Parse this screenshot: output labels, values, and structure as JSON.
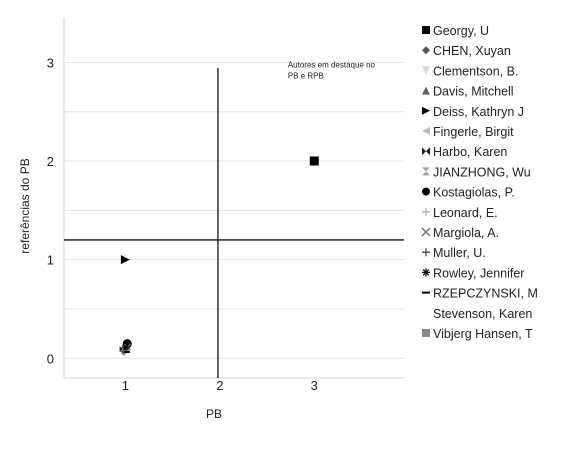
{
  "chart_data": {
    "type": "scatter",
    "title": "",
    "xlabel": "PB",
    "ylabel": "referências do PB",
    "xlim": [
      0.35,
      3.95
    ],
    "ylim": [
      -0.2,
      3.45
    ],
    "x_ticks": [
      "1",
      "2",
      "3"
    ],
    "y_ticks": [
      "0",
      "1",
      "2",
      "3"
    ],
    "x_tick_values": [
      1,
      2,
      3
    ],
    "y_tick_values": [
      0,
      1,
      2,
      3
    ],
    "grid": "horizontal",
    "reference_lines": {
      "x": 1.98,
      "y": 1.2
    },
    "annotation": {
      "line1": "Autores em destaque no",
      "line2": "PB e RPB",
      "x": 2.72,
      "y_top": 2.95
    },
    "legend_placement": "right",
    "series": [
      {
        "name": "Georgy, U",
        "marker": "square",
        "color": "#000000",
        "points": [
          [
            3.0,
            2.0
          ]
        ]
      },
      {
        "name": "CHEN, Xuyan",
        "marker": "diamond",
        "color": "#555555",
        "points": [
          [
            1.0,
            0.1
          ]
        ]
      },
      {
        "name": "Clementson, B.",
        "marker": "triangle-down",
        "color": "#d8d8d8",
        "points": [
          [
            1.0,
            0.1
          ]
        ]
      },
      {
        "name": "Davis, Mitchell",
        "marker": "triangle-up",
        "color": "#606060",
        "points": [
          [
            1.0,
            0.1
          ]
        ]
      },
      {
        "name": "Deiss, Kathryn J",
        "marker": "triangle-right",
        "color": "#000000",
        "points": [
          [
            1.0,
            1.0
          ]
        ]
      },
      {
        "name": "Fingerle, Birgit",
        "marker": "triangle-left",
        "color": "#bdbdbd",
        "points": [
          [
            1.0,
            0.1
          ]
        ]
      },
      {
        "name": "Harbo, Karen",
        "marker": "bowtie",
        "color": "#202020",
        "points": [
          [
            1.0,
            0.1
          ]
        ]
      },
      {
        "name": "JIANZHONG, Wu",
        "marker": "hourglass",
        "color": "#a0a0a0",
        "points": [
          [
            1.0,
            0.1
          ]
        ]
      },
      {
        "name": "Kostagiolas, P.",
        "marker": "circle",
        "color": "#000000",
        "points": [
          [
            1.02,
            0.12
          ]
        ]
      },
      {
        "name": "Leonard, E.",
        "marker": "plus",
        "color": "#b5b5b5",
        "points": [
          [
            1.0,
            0.1
          ]
        ]
      },
      {
        "name": "Margiola, A.",
        "marker": "x",
        "color": "#707070",
        "points": [
          [
            1.0,
            0.1
          ]
        ]
      },
      {
        "name": "Muller, U.",
        "marker": "plus",
        "color": "#505050",
        "points": [
          [
            1.0,
            0.1
          ]
        ]
      },
      {
        "name": "Rowley, Jennifer",
        "marker": "asterisk",
        "color": "#101010",
        "points": [
          [
            1.0,
            0.1
          ]
        ]
      },
      {
        "name": "RZEPCZYNSKI, M",
        "marker": "dash",
        "color": "#000000",
        "points": [
          [
            1.0,
            0.1
          ]
        ]
      },
      {
        "name": "Stevenson, Karen",
        "marker": "none",
        "color": "#ffffff",
        "points": []
      },
      {
        "name": "Vibjerg Hansen, T",
        "marker": "square",
        "color": "#888888",
        "points": []
      }
    ]
  }
}
